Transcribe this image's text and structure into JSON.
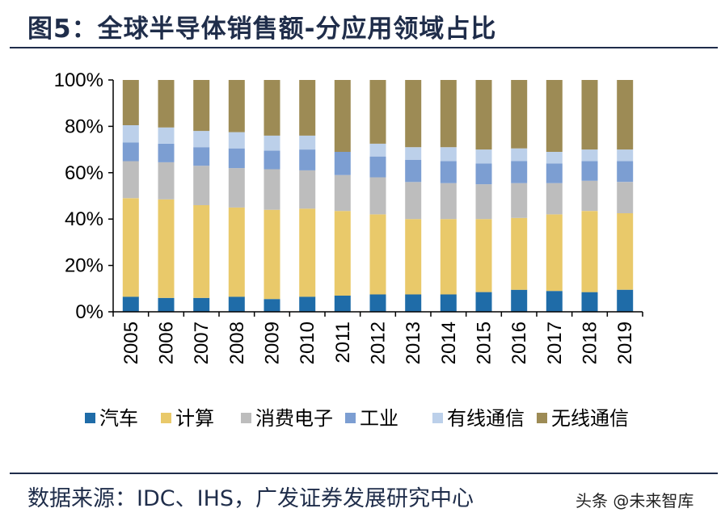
{
  "title": "图5：全球半导体销售额-分应用领域占比",
  "source": "数据来源：IDC、IHS，广发证券发展研究中心",
  "watermark": "头条 @未来智库",
  "chart_data": {
    "type": "bar",
    "stacked": true,
    "categories": [
      "2005",
      "2006",
      "2007",
      "2008",
      "2009",
      "2010",
      "2011",
      "2012",
      "2013",
      "2014",
      "2015",
      "2016",
      "2017",
      "2018",
      "2019"
    ],
    "yticks": [
      "0%",
      "20%",
      "40%",
      "60%",
      "80%",
      "100%"
    ],
    "ylim": [
      0,
      100
    ],
    "legend_position": "bottom",
    "series": [
      {
        "name": "汽车",
        "color": "#1f6ca8",
        "values": [
          6.5,
          6,
          6,
          6.5,
          5.5,
          6.5,
          7,
          7.5,
          7.5,
          7.5,
          8.5,
          9.5,
          9,
          8.5,
          9.5
        ]
      },
      {
        "name": "计算",
        "color": "#e9c96a",
        "values": [
          42.5,
          42.5,
          40,
          38.5,
          38.5,
          38,
          36.5,
          34.5,
          32.5,
          32.5,
          31.5,
          31,
          33,
          35,
          33
        ]
      },
      {
        "name": "消费电子",
        "color": "#bdbdbd",
        "values": [
          16,
          16,
          17,
          17,
          17.5,
          16.5,
          15.5,
          16,
          16,
          15.5,
          15,
          15,
          13.5,
          13,
          13.5
        ]
      },
      {
        "name": "工业",
        "color": "#7c9ed2",
        "values": [
          8,
          8,
          8,
          8.5,
          8,
          9,
          10,
          9,
          9.5,
          9.5,
          9,
          9.5,
          8.5,
          8.5,
          9
        ]
      },
      {
        "name": "有线通信",
        "color": "#bcd0ea",
        "values": [
          7.5,
          7,
          7,
          7,
          6.5,
          6,
          0,
          5.5,
          5.5,
          6,
          6,
          5.5,
          5,
          5,
          5
        ]
      },
      {
        "name": "无线通信",
        "color": "#9d8b55",
        "values": [
          19.5,
          20.5,
          22,
          22.5,
          24,
          24,
          31,
          27.5,
          29,
          29,
          30,
          29.5,
          31,
          30,
          30
        ]
      }
    ]
  }
}
